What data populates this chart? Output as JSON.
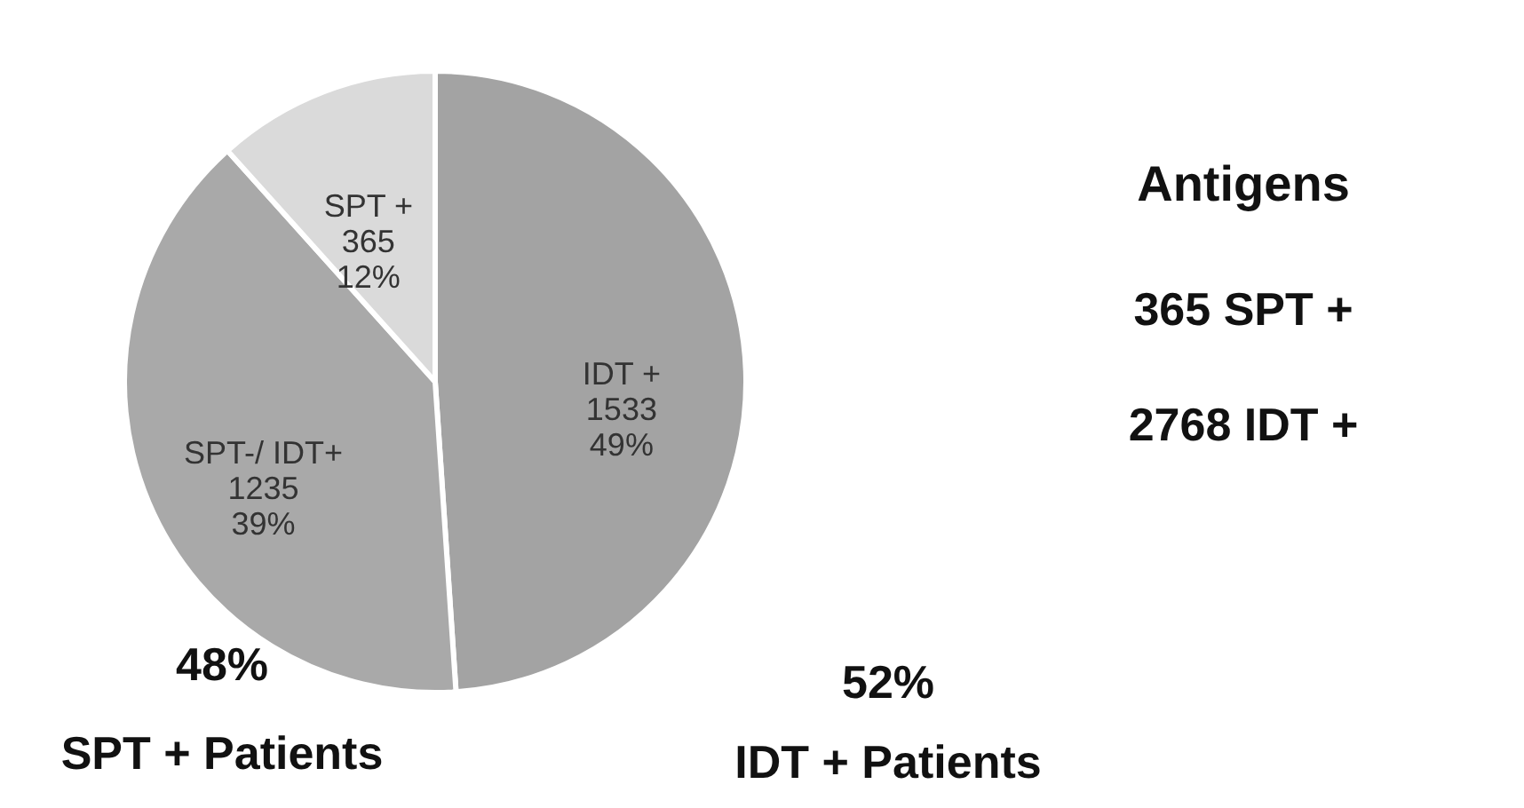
{
  "chart_data": {
    "type": "pie",
    "categories": [
      "IDT +",
      "SPT-/ IDT+",
      "SPT +"
    ],
    "values": [
      1533,
      1235,
      365
    ],
    "value_labels": [
      "1533\n49%",
      "1235\n39%",
      "365\n12%"
    ],
    "colors": [
      "#a3a3a3",
      "#a9a9a9",
      "#dadada"
    ],
    "annotations": [
      "Antigens",
      "365  SPT +",
      "2768  IDT +",
      "48%",
      "SPT + Patients",
      "52%",
      "IDT + Patients"
    ]
  }
}
